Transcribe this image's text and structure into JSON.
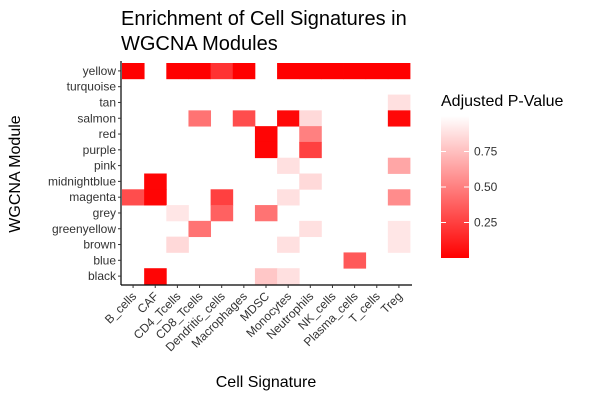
{
  "chart_data": {
    "type": "heatmap",
    "title_lines": [
      "Enrichment of Cell Signatures in",
      "WGCNA Modules"
    ],
    "xlabel": "Cell Signature",
    "ylabel": "WGCNA Module",
    "x_categories": [
      "B_cells",
      "CAF",
      "CD4_Tcells",
      "CD8_Tcells",
      "Dendritic_cells",
      "Macrophages",
      "MDSC",
      "Monocytes",
      "Neutrophils",
      "NK_cells",
      "Plasma_cells",
      "T_cells",
      "Treg"
    ],
    "y_categories": [
      "yellow",
      "turquoise",
      "tan",
      "salmon",
      "red",
      "purple",
      "pink",
      "midnightblue",
      "magenta",
      "grey",
      "greenyellow",
      "brown",
      "blue",
      "black"
    ],
    "legend_title": "Adjusted P-Value",
    "legend_ticks": [
      "0.25",
      "0.50",
      "0.75"
    ],
    "legend_tick_values": [
      0.25,
      0.5,
      0.75
    ],
    "color_range": [
      0.0,
      1.0
    ],
    "low_color": "#ff0000",
    "high_color": "#ffffff",
    "cells": [
      {
        "x": "B_cells",
        "y": "yellow",
        "value": 0.0
      },
      {
        "x": "CD4_Tcells",
        "y": "yellow",
        "value": 0.0
      },
      {
        "x": "CD8_Tcells",
        "y": "yellow",
        "value": 0.0
      },
      {
        "x": "Dendritic_cells",
        "y": "yellow",
        "value": 0.2
      },
      {
        "x": "Macrophages",
        "y": "yellow",
        "value": 0.0
      },
      {
        "x": "Monocytes",
        "y": "yellow",
        "value": 0.0
      },
      {
        "x": "Neutrophils",
        "y": "yellow",
        "value": 0.0
      },
      {
        "x": "NK_cells",
        "y": "yellow",
        "value": 0.0
      },
      {
        "x": "Plasma_cells",
        "y": "yellow",
        "value": 0.0
      },
      {
        "x": "T_cells",
        "y": "yellow",
        "value": 0.0
      },
      {
        "x": "Treg",
        "y": "yellow",
        "value": 0.0
      },
      {
        "x": "Treg",
        "y": "tan",
        "value": 0.88
      },
      {
        "x": "CD8_Tcells",
        "y": "salmon",
        "value": 0.45
      },
      {
        "x": "Macrophages",
        "y": "salmon",
        "value": 0.3
      },
      {
        "x": "Monocytes",
        "y": "salmon",
        "value": 0.03
      },
      {
        "x": "Neutrophils",
        "y": "salmon",
        "value": 0.85
      },
      {
        "x": "Treg",
        "y": "salmon",
        "value": 0.03
      },
      {
        "x": "MDSC",
        "y": "red",
        "value": 0.02
      },
      {
        "x": "Neutrophils",
        "y": "red",
        "value": 0.5
      },
      {
        "x": "MDSC",
        "y": "purple",
        "value": 0.02
      },
      {
        "x": "Neutrophils",
        "y": "purple",
        "value": 0.25
      },
      {
        "x": "Monocytes",
        "y": "pink",
        "value": 0.88
      },
      {
        "x": "Treg",
        "y": "pink",
        "value": 0.65
      },
      {
        "x": "CAF",
        "y": "midnightblue",
        "value": 0.02
      },
      {
        "x": "Neutrophils",
        "y": "midnightblue",
        "value": 0.85
      },
      {
        "x": "B_cells",
        "y": "magenta",
        "value": 0.3
      },
      {
        "x": "CAF",
        "y": "magenta",
        "value": 0.02
      },
      {
        "x": "Dendritic_cells",
        "y": "magenta",
        "value": 0.25
      },
      {
        "x": "Monocytes",
        "y": "magenta",
        "value": 0.88
      },
      {
        "x": "Treg",
        "y": "magenta",
        "value": 0.55
      },
      {
        "x": "CD4_Tcells",
        "y": "grey",
        "value": 0.9
      },
      {
        "x": "Dendritic_cells",
        "y": "grey",
        "value": 0.38
      },
      {
        "x": "MDSC",
        "y": "grey",
        "value": 0.45
      },
      {
        "x": "CD8_Tcells",
        "y": "greenyellow",
        "value": 0.45
      },
      {
        "x": "Neutrophils",
        "y": "greenyellow",
        "value": 0.88
      },
      {
        "x": "Treg",
        "y": "greenyellow",
        "value": 0.9
      },
      {
        "x": "CD4_Tcells",
        "y": "brown",
        "value": 0.85
      },
      {
        "x": "Monocytes",
        "y": "brown",
        "value": 0.88
      },
      {
        "x": "Treg",
        "y": "brown",
        "value": 0.9
      },
      {
        "x": "Plasma_cells",
        "y": "blue",
        "value": 0.35
      },
      {
        "x": "CAF",
        "y": "black",
        "value": 0.02
      },
      {
        "x": "MDSC",
        "y": "black",
        "value": 0.78
      },
      {
        "x": "Monocytes",
        "y": "black",
        "value": 0.88
      }
    ]
  }
}
